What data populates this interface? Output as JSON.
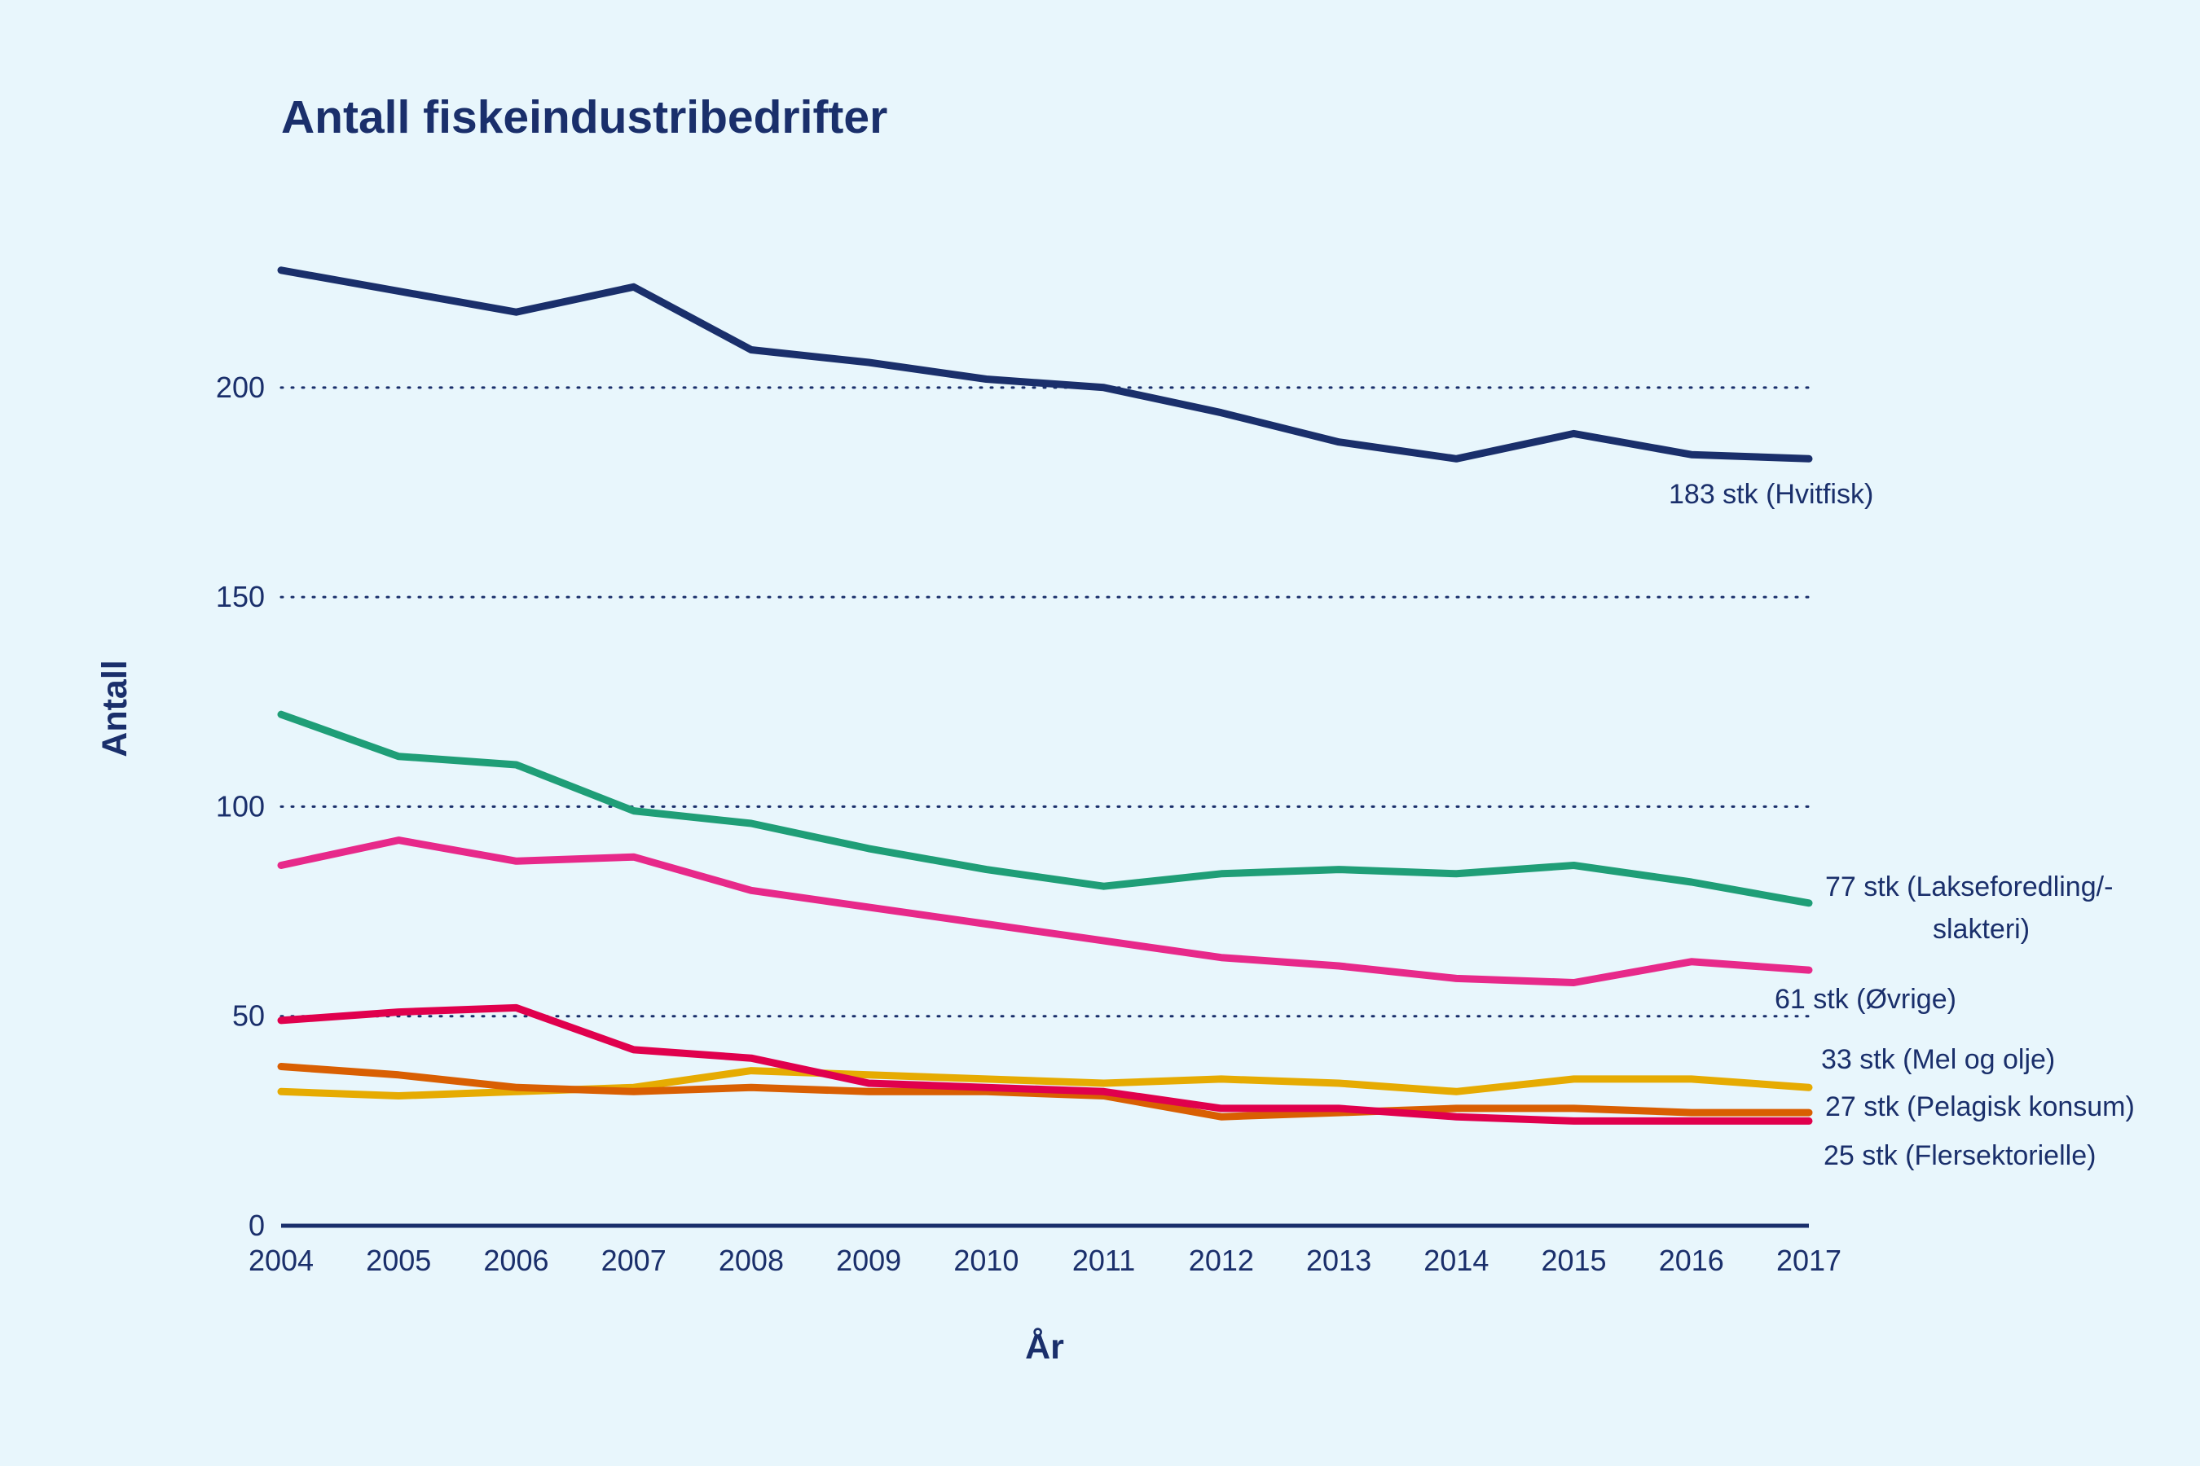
{
  "chart_data": {
    "type": "line",
    "title": "Antall fiskeindustribedrifter",
    "xlabel": "År",
    "ylabel": "Antall",
    "x": [
      2004,
      2005,
      2006,
      2007,
      2008,
      2009,
      2010,
      2011,
      2012,
      2013,
      2014,
      2015,
      2016,
      2017
    ],
    "xlim": [
      2004,
      2017
    ],
    "ylim": [
      0,
      240
    ],
    "yticks": [
      0,
      50,
      100,
      150,
      200
    ],
    "grid": true,
    "legend": "direct-labels-right",
    "series": [
      {
        "name": "Hvitfisk",
        "color": "#1a2f6b",
        "end_label": [
          "183 stk (Hvitfisk)"
        ],
        "values": [
          228,
          223,
          218,
          224,
          209,
          206,
          202,
          200,
          194,
          187,
          183,
          189,
          184,
          183
        ]
      },
      {
        "name": "Lakseforedling/-slakteri",
        "color": "#1f9e77",
        "end_label": [
          "77 stk (Lakseforedling/-",
          "slakteri)"
        ],
        "values": [
          122,
          112,
          110,
          99,
          96,
          90,
          85,
          81,
          84,
          85,
          84,
          86,
          82,
          77
        ]
      },
      {
        "name": "Øvrige",
        "color": "#e7298a",
        "end_label": [
          "61 stk (Øvrige)"
        ],
        "values": [
          86,
          92,
          87,
          88,
          80,
          76,
          72,
          68,
          64,
          62,
          59,
          58,
          63,
          61
        ]
      },
      {
        "name": "Mel og olje",
        "color": "#e6ab02",
        "end_label": [
          "33 stk (Mel og olje)"
        ],
        "values": [
          32,
          31,
          32,
          33,
          37,
          36,
          35,
          34,
          35,
          34,
          32,
          35,
          35,
          33
        ]
      },
      {
        "name": "Pelagisk konsum",
        "color": "#d95f02",
        "end_label": [
          "27 stk (Pelagisk konsum)"
        ],
        "values": [
          38,
          36,
          33,
          32,
          33,
          32,
          32,
          31,
          26,
          27,
          28,
          28,
          27,
          27
        ]
      },
      {
        "name": "Flersektorielle",
        "color": "#e0004d",
        "end_label": [
          "25 stk (Flersektorielle)"
        ],
        "values": [
          49,
          51,
          52,
          42,
          40,
          34,
          33,
          32,
          28,
          28,
          26,
          25,
          25,
          25
        ]
      }
    ]
  }
}
